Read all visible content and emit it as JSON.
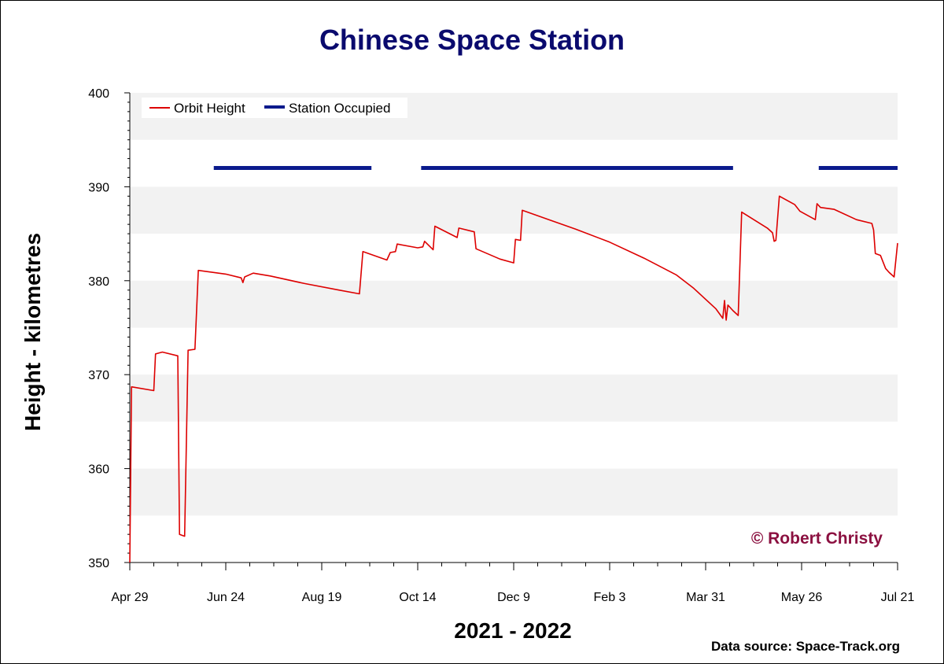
{
  "chart_data": {
    "type": "line",
    "title": "Chinese Space Station",
    "xlabel": "2021 - 2022",
    "ylabel": "Height - kilometres",
    "x_tick_labels": [
      "Apr 29",
      "Jun 24",
      "Aug 19",
      "Oct 14",
      "Dec 9",
      "Feb 3",
      "Mar 31",
      "May 26",
      "Jul 21"
    ],
    "x_range": [
      "2021-04-29",
      "2022-07-21"
    ],
    "y_ticks": [
      350,
      360,
      370,
      380,
      390,
      400
    ],
    "ylim": [
      350,
      400
    ],
    "grid": "alternating horizontal bands every 5 km",
    "legend_position": "top-left",
    "series": [
      {
        "name": "Orbit Height",
        "color": "#dd0000",
        "points": [
          [
            "2021-04-29",
            350.0
          ],
          [
            "2021-04-30",
            368.7
          ],
          [
            "2021-05-13",
            368.3
          ],
          [
            "2021-05-14",
            372.2
          ],
          [
            "2021-05-18",
            372.4
          ],
          [
            "2021-05-27",
            372.0
          ],
          [
            "2021-05-28",
            353.0
          ],
          [
            "2021-05-31",
            352.8
          ],
          [
            "2021-06-02",
            372.6
          ],
          [
            "2021-06-06",
            372.7
          ],
          [
            "2021-06-08",
            381.1
          ],
          [
            "2021-06-24",
            380.7
          ],
          [
            "2021-07-03",
            380.3
          ],
          [
            "2021-07-04",
            379.8
          ],
          [
            "2021-07-05",
            380.4
          ],
          [
            "2021-07-10",
            380.8
          ],
          [
            "2021-07-20",
            380.5
          ],
          [
            "2021-08-09",
            379.7
          ],
          [
            "2021-08-29",
            379.0
          ],
          [
            "2021-09-10",
            378.6
          ],
          [
            "2021-09-12",
            383.1
          ],
          [
            "2021-09-26",
            382.2
          ],
          [
            "2021-09-28",
            383.0
          ],
          [
            "2021-10-01",
            383.1
          ],
          [
            "2021-10-02",
            383.9
          ],
          [
            "2021-10-14",
            383.5
          ],
          [
            "2021-10-17",
            383.6
          ],
          [
            "2021-10-18",
            384.2
          ],
          [
            "2021-10-23",
            383.3
          ],
          [
            "2021-10-24",
            385.8
          ],
          [
            "2021-11-06",
            384.6
          ],
          [
            "2021-11-07",
            385.6
          ],
          [
            "2021-11-16",
            385.2
          ],
          [
            "2021-11-17",
            383.4
          ],
          [
            "2021-12-01",
            382.3
          ],
          [
            "2021-12-09",
            381.9
          ],
          [
            "2021-12-10",
            384.4
          ],
          [
            "2021-12-13",
            384.3
          ],
          [
            "2021-12-14",
            387.5
          ],
          [
            "2021-12-31",
            386.4
          ],
          [
            "2022-01-14",
            385.5
          ],
          [
            "2022-02-03",
            384.1
          ],
          [
            "2022-02-23",
            382.4
          ],
          [
            "2022-03-14",
            380.6
          ],
          [
            "2022-03-24",
            379.2
          ],
          [
            "2022-04-06",
            377.0
          ],
          [
            "2022-04-10",
            376.0
          ],
          [
            "2022-04-11",
            377.9
          ],
          [
            "2022-04-12",
            375.8
          ],
          [
            "2022-04-13",
            377.4
          ],
          [
            "2022-04-16",
            376.8
          ],
          [
            "2022-04-19",
            376.3
          ],
          [
            "2022-04-21",
            387.3
          ],
          [
            "2022-05-06",
            385.6
          ],
          [
            "2022-05-09",
            385.1
          ],
          [
            "2022-05-10",
            384.2
          ],
          [
            "2022-05-11",
            384.3
          ],
          [
            "2022-05-13",
            389.0
          ],
          [
            "2022-05-22",
            388.1
          ],
          [
            "2022-05-25",
            387.4
          ],
          [
            "2022-06-03",
            386.5
          ],
          [
            "2022-06-04",
            388.2
          ],
          [
            "2022-06-06",
            387.8
          ],
          [
            "2022-06-14",
            387.6
          ],
          [
            "2022-06-27",
            386.5
          ],
          [
            "2022-07-06",
            386.1
          ],
          [
            "2022-07-07",
            385.4
          ],
          [
            "2022-07-08",
            382.9
          ],
          [
            "2022-07-11",
            382.7
          ],
          [
            "2022-07-14",
            381.3
          ],
          [
            "2022-07-16",
            380.9
          ],
          [
            "2022-07-19",
            380.4
          ],
          [
            "2022-07-21",
            384.0
          ]
        ]
      },
      {
        "name": "Station Occupied",
        "color": "#0a1a8c",
        "level": 392,
        "periods": [
          [
            "2021-06-17",
            "2021-09-17"
          ],
          [
            "2021-10-16",
            "2022-04-16"
          ],
          [
            "2022-06-05",
            "2022-07-21"
          ]
        ]
      }
    ]
  },
  "annotations": {
    "copyright": "© Robert Christy",
    "source": "Data source: Space-Track.org"
  }
}
